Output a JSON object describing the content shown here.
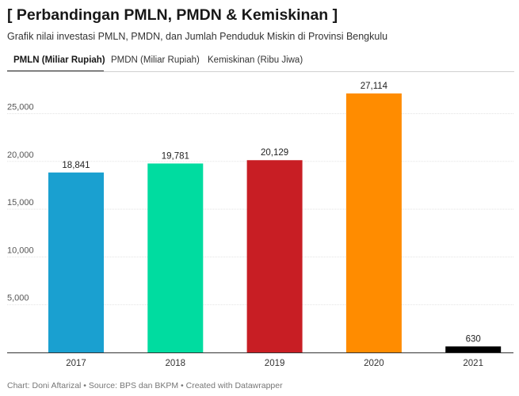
{
  "title": "[ Perbandingan PMLN, PMDN & Kemiskinan ]",
  "subtitle": "Grafik nilai investasi PMLN, PMDN, dan Jumlah Penduduk Miskin di Provinsi Bengkulu",
  "tabs": [
    {
      "label": "PMLN (Miliar Rupiah)",
      "active": true
    },
    {
      "label": "PMDN (Miliar Rupiah)",
      "active": false
    },
    {
      "label": "Kemiskinan (Ribu Jiwa)",
      "active": false
    }
  ],
  "chart_data": {
    "type": "bar",
    "categories": [
      "2017",
      "2018",
      "2019",
      "2020",
      "2021"
    ],
    "values": [
      18841,
      19781,
      20129,
      27114,
      630
    ],
    "value_labels": [
      "18,841",
      "19,781",
      "20,129",
      "27,114",
      "630"
    ],
    "colors": [
      "#1aa0d0",
      "#00dca0",
      "#c81e24",
      "#ff8c00",
      "#000000"
    ],
    "yticks": [
      0,
      5000,
      10000,
      15000,
      20000,
      25000
    ],
    "ytick_labels": [
      "",
      "5,000",
      "10,000",
      "15,000",
      "20,000",
      "25,000"
    ],
    "ylim": [
      0,
      29000
    ],
    "grid": true,
    "legend": "none"
  },
  "footer": "Chart: Doni Aftarizal • Source: BPS dan BKPM • Created with Datawrapper"
}
